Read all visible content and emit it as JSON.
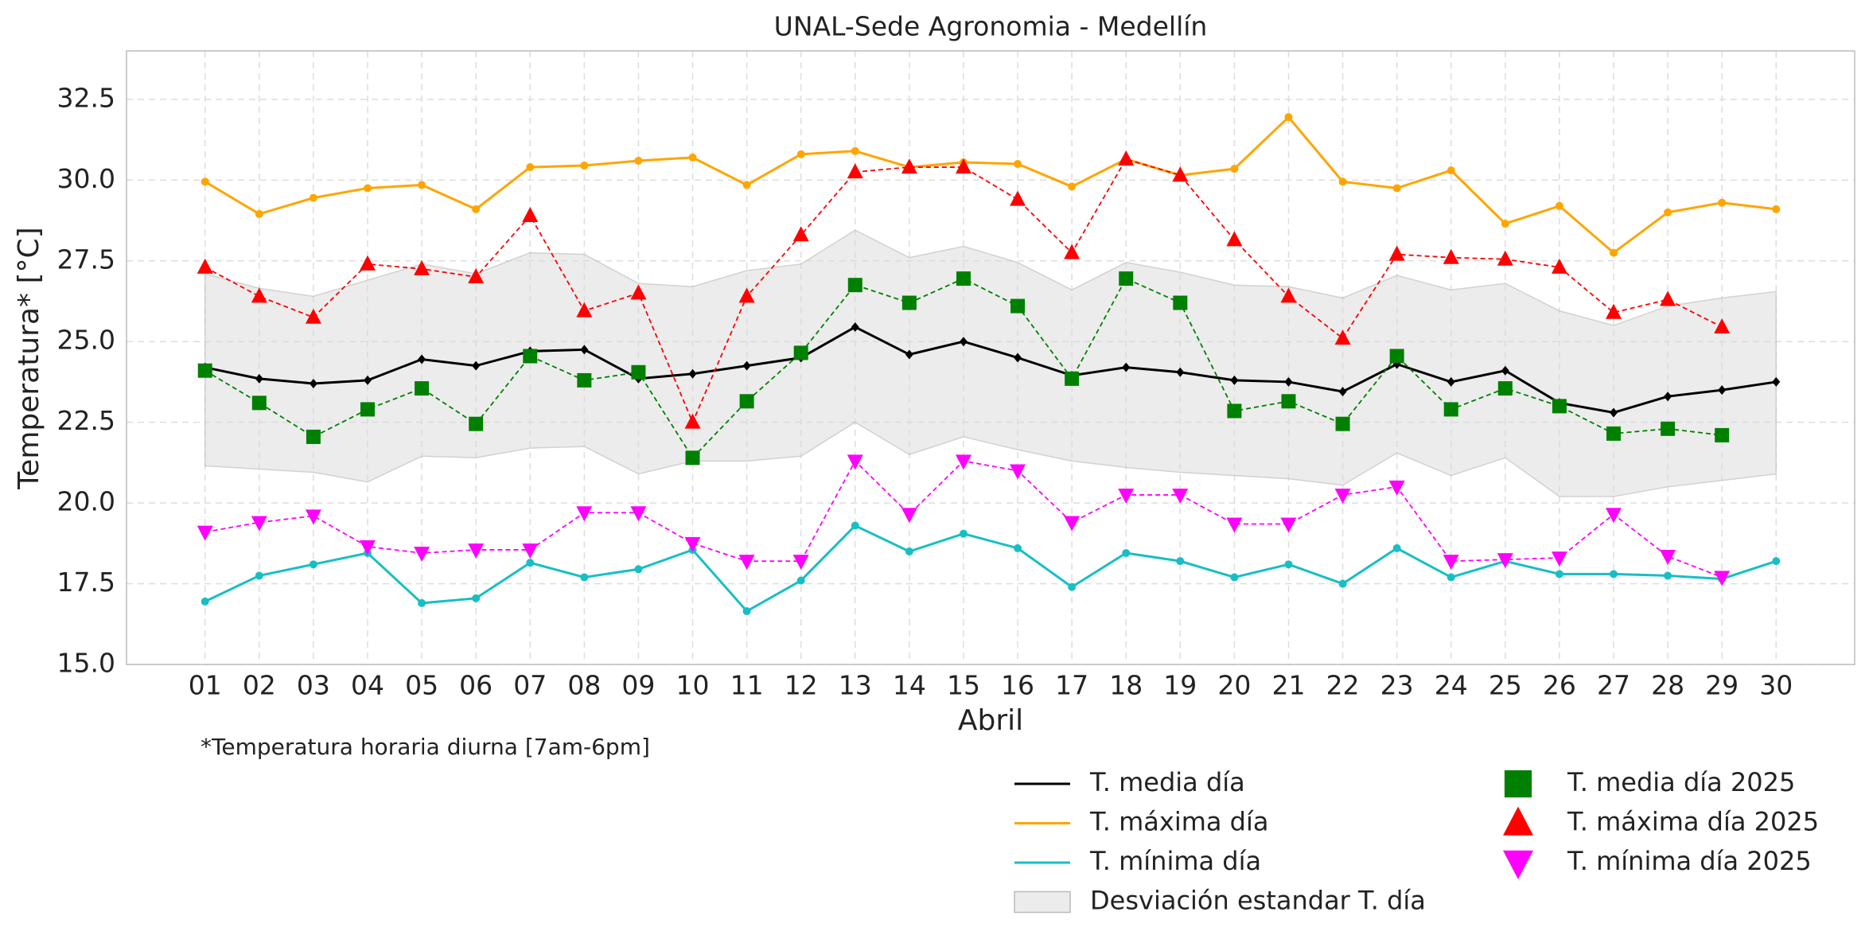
{
  "chart_data": {
    "type": "line",
    "title": "UNAL-Sede Agronomia - Medellín",
    "x_label": "Abril",
    "y_label": "Temperatura* [°C]",
    "annotation": "*Temperatura horaria diurna [7am-6pm]",
    "categories": [
      "01",
      "02",
      "03",
      "04",
      "05",
      "06",
      "07",
      "08",
      "09",
      "10",
      "11",
      "12",
      "13",
      "14",
      "15",
      "16",
      "17",
      "18",
      "19",
      "20",
      "21",
      "22",
      "23",
      "24",
      "25",
      "26",
      "27",
      "28",
      "29",
      "30"
    ],
    "ylim": [
      15,
      34
    ],
    "yticks": [
      {
        "value": 15,
        "label": "15.0"
      },
      17.5,
      {
        "value": 20,
        "label": "20.0"
      },
      22.5,
      {
        "value": 25,
        "label": "25.0"
      },
      27.5,
      {
        "value": 30,
        "label": "30.0"
      },
      32.5
    ],
    "grid": true,
    "series": [
      {
        "name": "T. media día",
        "color": "#000000",
        "marker": "diamond",
        "dashed": false,
        "values": [
          24.2,
          23.85,
          23.7,
          23.8,
          24.45,
          24.25,
          24.7,
          24.75,
          23.85,
          24.0,
          24.25,
          24.5,
          25.45,
          24.6,
          25.0,
          24.5,
          23.95,
          24.2,
          24.05,
          23.8,
          23.75,
          23.45,
          24.3,
          23.75,
          24.1,
          23.1,
          22.8,
          23.3,
          23.5,
          23.75
        ]
      },
      {
        "name": "T. máxima día",
        "color": "#ffa500",
        "marker": "circle",
        "dashed": false,
        "values": [
          29.95,
          28.95,
          29.45,
          29.75,
          29.85,
          29.1,
          30.4,
          30.45,
          30.6,
          30.7,
          29.85,
          30.8,
          30.9,
          30.4,
          30.55,
          30.5,
          29.8,
          30.65,
          30.15,
          30.35,
          31.95,
          29.95,
          29.75,
          30.3,
          28.65,
          29.2,
          27.75,
          29.0,
          29.3,
          29.1
        ]
      },
      {
        "name": "T. mínima día",
        "color": "#17bfc4",
        "marker": "circle",
        "dashed": false,
        "values": [
          16.95,
          17.75,
          18.1,
          18.45,
          16.9,
          17.05,
          18.15,
          17.7,
          17.95,
          18.55,
          16.65,
          17.6,
          19.3,
          18.5,
          19.05,
          18.6,
          17.4,
          18.45,
          18.2,
          17.7,
          18.1,
          17.5,
          18.6,
          17.7,
          18.2,
          17.8,
          17.8,
          17.75,
          17.65,
          18.2
        ]
      },
      {
        "name": "T. media día 2025",
        "color": "#008000",
        "marker": "square",
        "dashed": true,
        "values": [
          24.1,
          23.1,
          22.05,
          22.9,
          23.55,
          22.45,
          24.55,
          23.8,
          24.05,
          21.4,
          23.15,
          24.65,
          26.75,
          26.2,
          26.95,
          26.1,
          23.85,
          26.95,
          26.2,
          22.85,
          23.15,
          22.45,
          24.55,
          22.9,
          23.55,
          23.0,
          22.15,
          22.3,
          22.1,
          null
        ]
      },
      {
        "name": "T. máxima día 2025",
        "color": "#ff0000",
        "marker": "triangle-up",
        "dashed": true,
        "values": [
          27.3,
          26.4,
          25.75,
          27.4,
          27.25,
          27.0,
          28.9,
          25.95,
          26.5,
          22.5,
          26.4,
          28.3,
          30.25,
          30.4,
          30.4,
          29.4,
          27.75,
          30.65,
          30.15,
          28.15,
          26.4,
          25.1,
          27.7,
          27.6,
          27.55,
          27.3,
          25.9,
          26.3,
          25.45,
          null
        ]
      },
      {
        "name": "T. mínima día 2025",
        "color": "#ff00ff",
        "marker": "triangle-down",
        "dashed": true,
        "values": [
          19.1,
          19.4,
          19.6,
          18.65,
          18.45,
          18.55,
          18.55,
          19.7,
          19.7,
          18.75,
          18.2,
          18.2,
          21.3,
          19.65,
          21.3,
          21.0,
          19.4,
          20.25,
          20.25,
          19.35,
          19.35,
          20.25,
          20.5,
          18.2,
          18.25,
          18.3,
          19.65,
          18.35,
          17.7,
          null
        ]
      }
    ],
    "band": {
      "name": "Desviación estandar T. día",
      "color": "#d9d9d9",
      "upper": [
        27.1,
        26.65,
        26.4,
        26.9,
        27.4,
        27.1,
        27.75,
        27.7,
        26.8,
        26.7,
        27.2,
        27.4,
        28.45,
        27.6,
        27.95,
        27.45,
        26.6,
        27.45,
        27.15,
        26.75,
        26.7,
        26.35,
        27.05,
        26.6,
        26.8,
        25.95,
        25.5,
        26.1,
        26.35,
        26.55
      ],
      "lower": [
        21.15,
        21.05,
        20.95,
        20.65,
        21.45,
        21.4,
        21.7,
        21.75,
        20.9,
        21.3,
        21.3,
        21.45,
        22.5,
        21.5,
        22.05,
        21.65,
        21.3,
        21.1,
        20.95,
        20.85,
        20.75,
        20.55,
        21.55,
        20.85,
        21.4,
        20.2,
        20.2,
        20.5,
        20.7,
        20.9
      ]
    }
  }
}
